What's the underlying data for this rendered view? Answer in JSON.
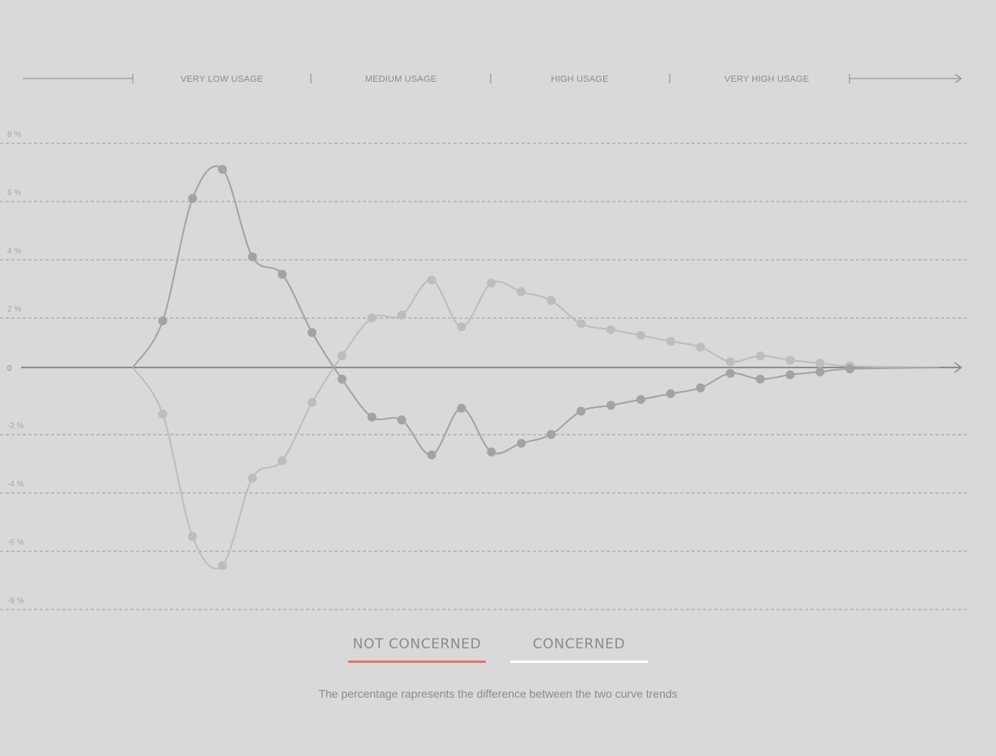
{
  "usage_bands": [
    "VERY LOW USAGE",
    "MEDIUM USAGE",
    "HIGH USAGE",
    "VERY HIGH USAGE"
  ],
  "legend": {
    "not_concerned": {
      "label": "NOT CONCERNED",
      "color": "#e4786a"
    },
    "concerned": {
      "label": "CONCERNED",
      "color": "#ffffff"
    }
  },
  "caption": "The percentage rapresents the difference between the two curve trends",
  "colors": {
    "background": "#d9d9d9",
    "axis": "#8c8c8c",
    "grid": "#9a9a9a",
    "dark_series": "#a3a3a3",
    "light_series": "#bdbdbd"
  },
  "chart_data": {
    "type": "line",
    "ylim": [
      -8,
      8
    ],
    "y_ticks": [
      8,
      6,
      4,
      2,
      0,
      -2,
      -4,
      -6,
      -8
    ],
    "y_tick_labels": [
      "8 %",
      "6 %",
      "4 %",
      "2 %",
      "0",
      "-2 %",
      "-4 %",
      "-6 %",
      "-8 %"
    ],
    "grid": true,
    "series": [
      {
        "points": [
          [
            0,
            0
          ],
          [
            1,
            1.6
          ],
          [
            2,
            5.8
          ],
          [
            3,
            6.8
          ],
          [
            4,
            3.8
          ],
          [
            5,
            3.2
          ],
          [
            6,
            1.2
          ],
          [
            7,
            -0.4
          ],
          [
            8,
            -1.7
          ],
          [
            9,
            -1.8
          ],
          [
            10,
            -3.0
          ],
          [
            11,
            -1.4
          ],
          [
            12,
            -2.9
          ],
          [
            13,
            -2.6
          ],
          [
            14,
            -2.3
          ],
          [
            15,
            -1.5
          ],
          [
            16,
            -1.3
          ],
          [
            17,
            -1.1
          ],
          [
            18,
            -0.9
          ],
          [
            19,
            -0.7
          ],
          [
            20,
            -0.2
          ],
          [
            21,
            -0.4
          ],
          [
            22,
            -0.25
          ],
          [
            23,
            -0.15
          ],
          [
            24,
            -0.05
          ],
          [
            27,
            0
          ]
        ],
        "color": "#a3a3a3"
      },
      {
        "points": [
          [
            0,
            0
          ],
          [
            1,
            -1.6
          ],
          [
            2,
            -5.8
          ],
          [
            3,
            -6.8
          ],
          [
            4,
            -3.8
          ],
          [
            5,
            -3.2
          ],
          [
            6,
            -1.2
          ],
          [
            7,
            0.4
          ],
          [
            8,
            1.7
          ],
          [
            9,
            1.8
          ],
          [
            10,
            3.0
          ],
          [
            11,
            1.4
          ],
          [
            12,
            2.9
          ],
          [
            13,
            2.6
          ],
          [
            14,
            2.3
          ],
          [
            15,
            1.5
          ],
          [
            16,
            1.3
          ],
          [
            17,
            1.1
          ],
          [
            18,
            0.9
          ],
          [
            19,
            0.7
          ],
          [
            20,
            0.2
          ],
          [
            21,
            0.4
          ],
          [
            22,
            0.25
          ],
          [
            23,
            0.15
          ],
          [
            24,
            0.05
          ],
          [
            27,
            0
          ]
        ],
        "color": "#bdbdbd"
      }
    ]
  }
}
